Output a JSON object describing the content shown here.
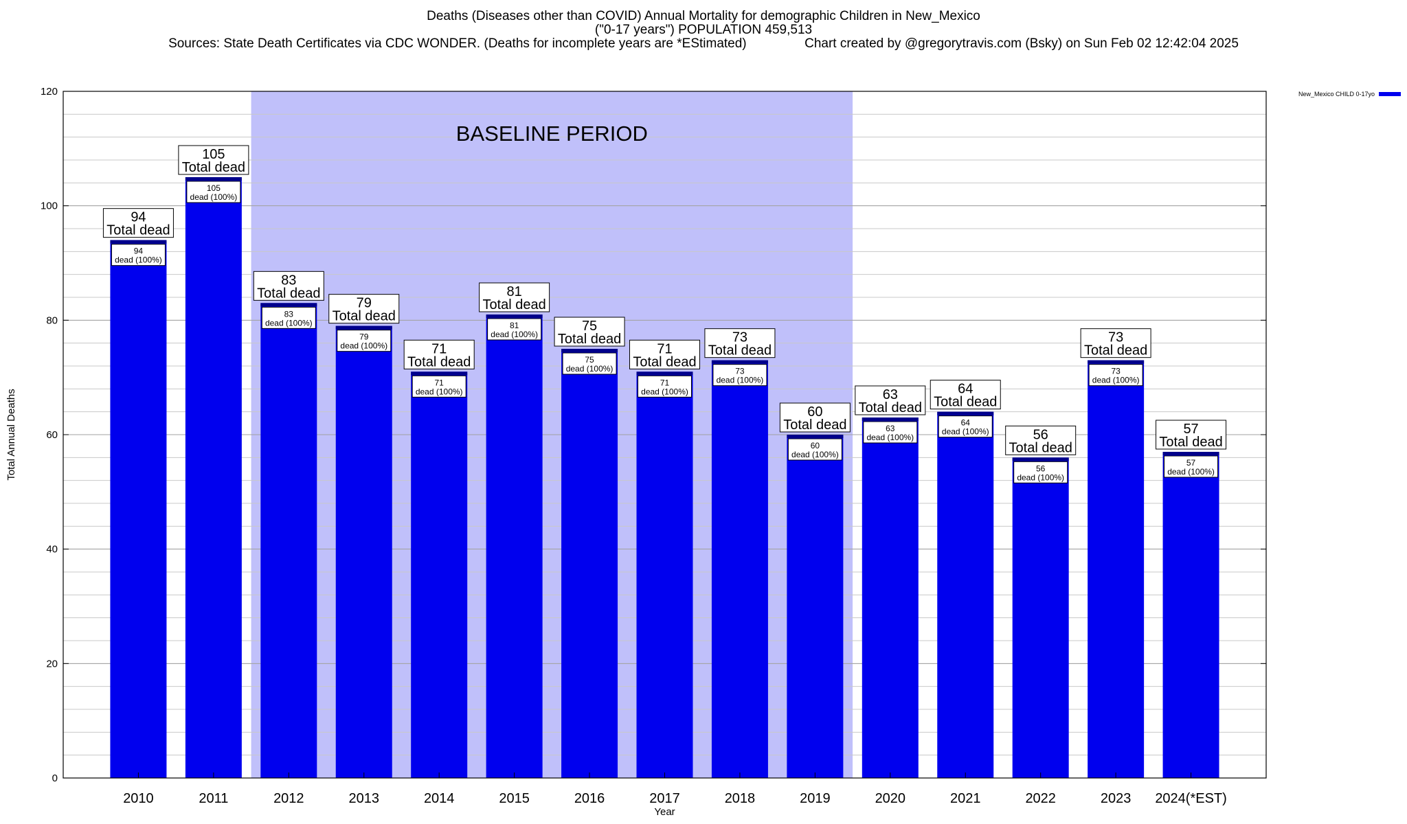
{
  "header": {
    "title": "Deaths (Diseases other than COVID) Annual Mortality for demographic Children in New_Mexico",
    "subtitle": "(\"0-17 years\") POPULATION 459,513",
    "sources_line": "Sources: State Death Certificates via CDC WONDER. (Deaths for incomplete years are *EStimated)                Chart created by @gregorytravis.com (Bsky) on Sun Feb 02 12:42:04 2025"
  },
  "chart_data": {
    "type": "bar",
    "xlabel": "Year",
    "ylabel": "Total Annual Deaths",
    "ylim": [
      0,
      120
    ],
    "y_ticks": [
      0,
      20,
      40,
      60,
      80,
      100,
      120
    ],
    "grid": true,
    "legend_placement": "top-right",
    "categories": [
      "2010",
      "2011",
      "2012",
      "2013",
      "2014",
      "2015",
      "2016",
      "2017",
      "2018",
      "2019",
      "2020",
      "2021",
      "2022",
      "2023",
      "2024(*EST)"
    ],
    "series": [
      {
        "name": "New_Mexico CHILD 0-17yo",
        "color": "#0000ee",
        "values": [
          94,
          105,
          83,
          79,
          71,
          81,
          75,
          71,
          73,
          60,
          63,
          64,
          56,
          73,
          57
        ]
      }
    ],
    "total_label_suffix": "Total dead",
    "inner_label_suffix": "dead (100%)",
    "baseline_period": {
      "label": "BASELINE PERIOD",
      "from": "2012",
      "to": "2019",
      "color": "#c0c0fa"
    }
  }
}
